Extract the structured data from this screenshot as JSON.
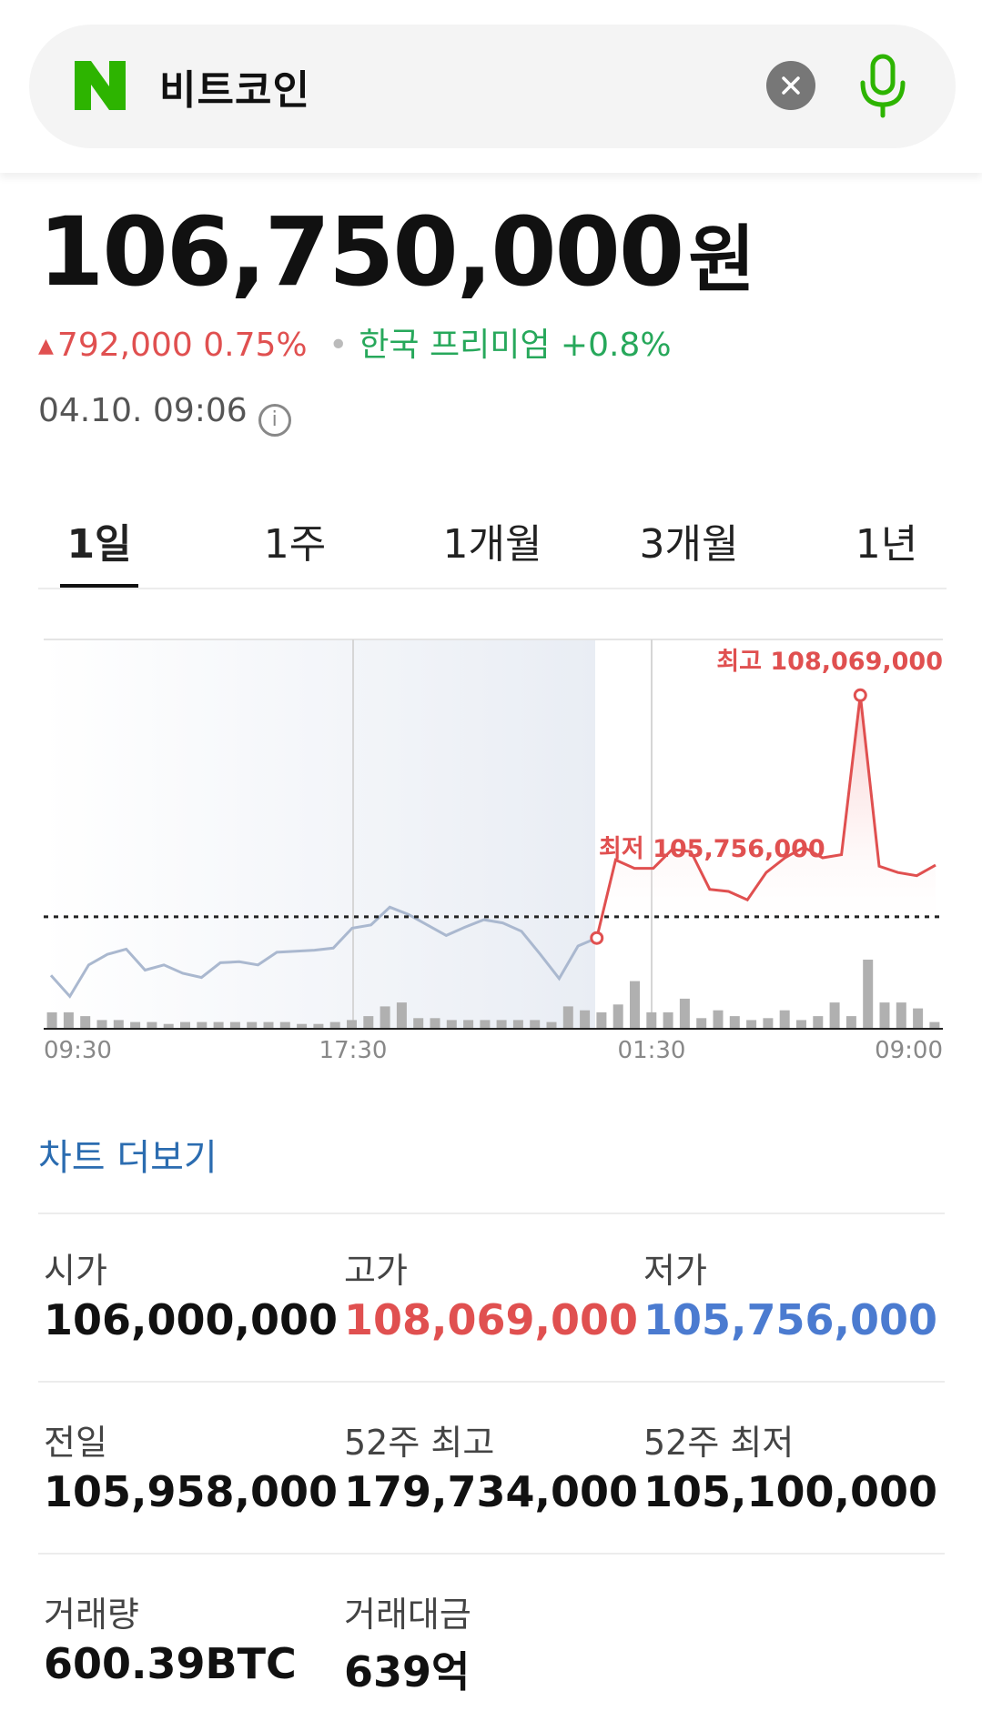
{
  "search": {
    "query": "비트코인",
    "clear_icon": "close-icon",
    "mic_icon": "microphone-icon",
    "logo_text": "N"
  },
  "quote": {
    "price": "106,750,000",
    "unit": "원",
    "change_arrow": "▲",
    "change_amount": "792,000",
    "change_percent": "0.75%",
    "dot": "•",
    "premium": "한국 프리미엄 +0.8%",
    "timestamp": "04.10. 09:06",
    "info_icon": "i"
  },
  "tabs": [
    {
      "label": "1일",
      "active": true
    },
    {
      "label": "1주",
      "active": false
    },
    {
      "label": "1개월",
      "active": false
    },
    {
      "label": "3개월",
      "active": false
    },
    {
      "label": "1년",
      "active": false
    }
  ],
  "chart_data": {
    "type": "line",
    "x_ticks": [
      "09:30",
      "17:30",
      "01:30",
      "09:00"
    ],
    "high_label": "최고 108,069,000",
    "low_label": "최저 105,756,000",
    "high": 108069000,
    "low": 105756000,
    "reference_line": 105958000,
    "ylim": [
      104900000,
      108600000
    ],
    "series": [
      {
        "values": [
          105400000,
          105200000,
          105500000,
          105600000,
          105650000,
          105450000,
          105500000,
          105420000,
          105380000,
          105520000,
          105530000,
          105500000,
          105620000,
          105630000,
          105640000,
          105660000,
          105850000,
          105880000,
          106050000,
          105980000,
          105880000,
          105780000,
          105860000,
          105930000,
          105900000,
          105820000,
          105600000,
          105370000,
          105680000,
          105756000,
          106500000,
          106420000,
          106420000,
          106600000,
          106580000,
          106220000,
          106200000,
          106120000,
          106380000,
          106520000,
          106620000,
          106520000,
          106550000,
          108069000,
          106440000,
          106380000,
          106350000,
          106450000
        ]
      }
    ],
    "volume": [
      0.08,
      0.08,
      0.06,
      0.04,
      0.04,
      0.03,
      0.03,
      0.02,
      0.03,
      0.03,
      0.03,
      0.03,
      0.03,
      0.03,
      0.03,
      0.02,
      0.02,
      0.03,
      0.04,
      0.06,
      0.11,
      0.13,
      0.05,
      0.05,
      0.04,
      0.04,
      0.04,
      0.04,
      0.04,
      0.04,
      0.03,
      0.11,
      0.09,
      0.08,
      0.12,
      0.24,
      0.08,
      0.08,
      0.15,
      0.05,
      0.09,
      0.06,
      0.04,
      0.05,
      0.09,
      0.04,
      0.06,
      0.13,
      0.06,
      0.35,
      0.13,
      0.13,
      0.1,
      0.03
    ],
    "colors": {
      "before": "#aab8cf",
      "after": "#e05050",
      "volume": "#b0b0b0",
      "reference": "#222222"
    }
  },
  "more_chart_label": "차트 더보기",
  "stats": {
    "open_label": "시가",
    "open_value": "106,000,000",
    "high_label": "고가",
    "high_value": "108,069,000",
    "low_label": "저가",
    "low_value": "105,756,000",
    "prev_label": "전일",
    "prev_value": "105,958,000",
    "wk52_high_label": "52주 최고",
    "wk52_high_value": "179,734,000",
    "wk52_low_label": "52주 최저",
    "wk52_low_value": "105,100,000",
    "volume_label": "거래량",
    "volume_value": "600.39BTC",
    "amount_label": "거래대금",
    "amount_value": "639억"
  },
  "colors": {
    "up": "#e05050",
    "down": "#4b7bd0",
    "green": "#27a85b",
    "link": "#2b6cb0"
  }
}
